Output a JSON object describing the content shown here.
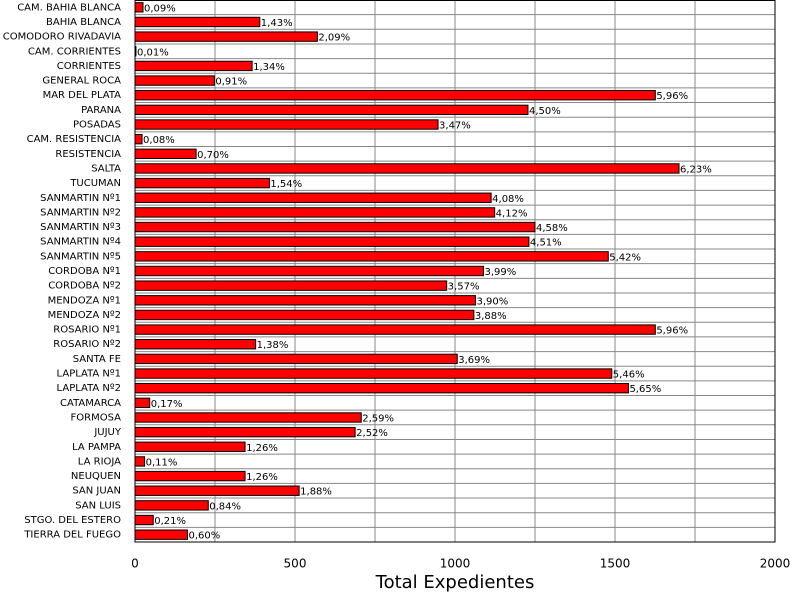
{
  "chart_data": {
    "type": "hbar",
    "xlabel": "Total Expedientes",
    "categories": [
      "CAM. BAHIA BLANCA",
      "BAHIA BLANCA",
      "COMODORO RIVADAVIA",
      "CAM. CORRIENTES",
      "CORRIENTES",
      "GENERAL ROCA",
      "MAR DEL PLATA",
      "PARANA",
      "POSADAS",
      "CAM. RESISTENCIA",
      "RESISTENCIA",
      "SALTA",
      "TUCUMAN",
      "SANMARTIN Nº1",
      "SANMARTIN Nº2",
      "SANMARTIN Nº3",
      "SANMARTIN Nº4",
      "SANMARTIN Nº5",
      "CORDOBA Nº1",
      "CORDOBA Nº2",
      "MENDOZA Nº1",
      "MENDOZA Nº2",
      "ROSARIO Nº1",
      "ROSARIO Nº2",
      "SANTA FE",
      "LAPLATA Nº1",
      "LAPLATA Nº2",
      "CATAMARCA",
      "FORMOSA",
      "JUJUY",
      "LA PAMPA",
      "LA RIOJA",
      "NEUQUEN",
      "SAN JUAN",
      "SAN LUIS",
      "STGO. DEL ESTERO",
      "TIERRA DEL FUEGO"
    ],
    "values": [
      25,
      390,
      570,
      3,
      366,
      248,
      1626,
      1228,
      947,
      22,
      191,
      1700,
      420,
      1113,
      1124,
      1250,
      1231,
      1479,
      1089,
      974,
      1064,
      1059,
      1626,
      377,
      1007,
      1490,
      1542,
      46,
      707,
      688,
      344,
      30,
      344,
      513,
      229,
      57,
      164
    ],
    "percent_labels": [
      "0,09%",
      "1,43%",
      "2,09%",
      "0,01%",
      "1,34%",
      "0,91%",
      "5,96%",
      "4,50%",
      "3,47%",
      "0,08%",
      "0,70%",
      "6,23%",
      "1,54%",
      "4,08%",
      "4,12%",
      "4,58%",
      "4,51%",
      "5,42%",
      "3,99%",
      "3,57%",
      "3,90%",
      "3,88%",
      "5,96%",
      "1,38%",
      "3,69%",
      "5,46%",
      "5,65%",
      "0,17%",
      "2,59%",
      "2,52%",
      "1,26%",
      "0,11%",
      "1,26%",
      "1,88%",
      "0,84%",
      "0,21%",
      "0,60%"
    ],
    "color": "#ff0000",
    "xlim": [
      0,
      2000
    ],
    "xticks": [
      0,
      500,
      1000,
      1500,
      2000
    ],
    "minor_xticks": [
      250,
      750,
      1250,
      1750
    ],
    "grid": true
  }
}
